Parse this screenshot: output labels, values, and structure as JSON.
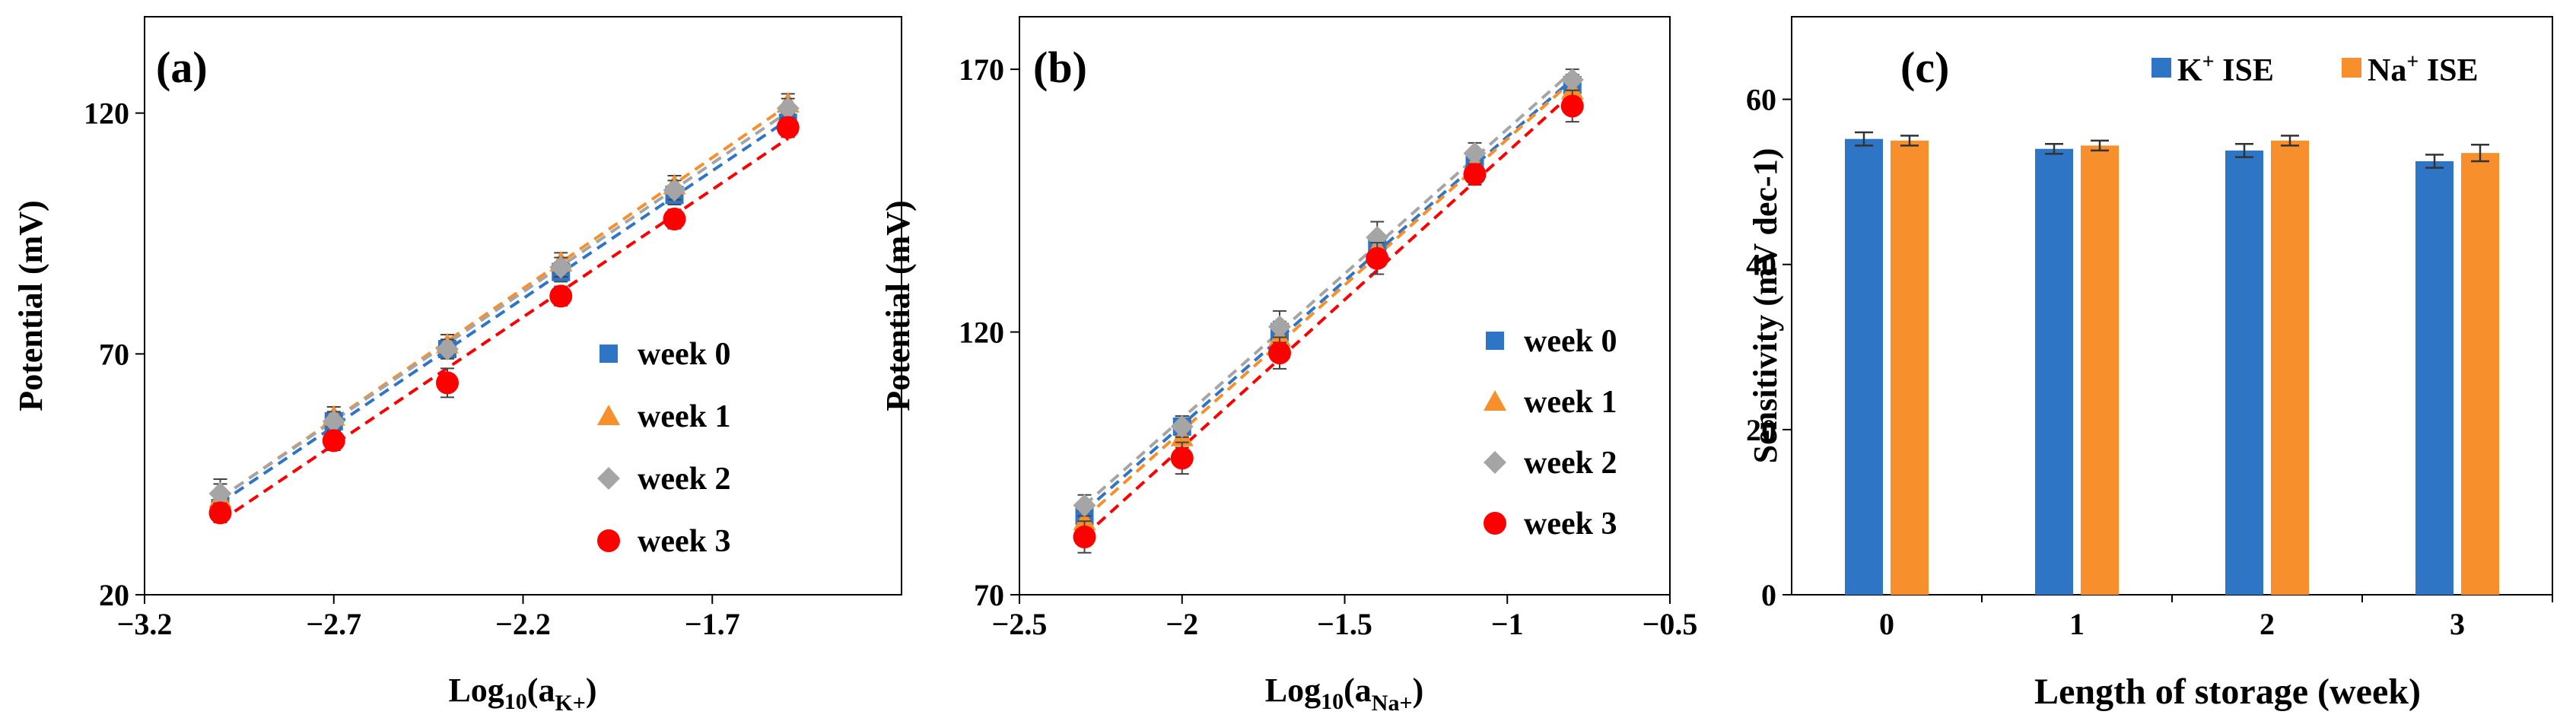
{
  "chart_data": [
    {
      "type": "scatter",
      "panel_label": "(a)",
      "ylabel": "Potential (mV)",
      "xlabel_main": "Log",
      "xlabel_base": "10",
      "xlabel_paren_open": "(a",
      "xlabel_sub": "K+",
      "xlabel_paren_close": ")",
      "xlim": [
        -3.2,
        -1.2
      ],
      "ylim": [
        20,
        140
      ],
      "xticks": [
        -3.2,
        -2.7,
        -2.2,
        -1.7
      ],
      "xtick_labels": [
        "−3.2",
        "−2.7",
        "−2.2",
        "−1.7"
      ],
      "yticks": [
        20,
        70,
        120
      ],
      "ytick_labels": [
        "20",
        "70",
        "120"
      ],
      "x": [
        -3.0,
        -2.7,
        -2.4,
        -2.1,
        -1.8,
        -1.5
      ],
      "series": [
        {
          "name": "week 0",
          "marker": "square",
          "color": "#2E75C6",
          "values": [
            38,
            56,
            71,
            87,
            103,
            118
          ],
          "err": [
            2,
            2,
            2,
            2,
            2,
            2
          ]
        },
        {
          "name": "week 1",
          "marker": "triangle",
          "color": "#F7902C",
          "values": [
            40,
            57,
            72,
            89,
            105,
            122
          ],
          "err": [
            3,
            2,
            2,
            2,
            2,
            2
          ]
        },
        {
          "name": "week 2",
          "marker": "diamond",
          "color": "#A5A5A5",
          "values": [
            41,
            56,
            71,
            88,
            104,
            121
          ],
          "err": [
            3,
            2,
            2,
            2,
            2,
            2
          ]
        },
        {
          "name": "week 3",
          "marker": "circle",
          "color": "#FF0000",
          "values": [
            37,
            52,
            64,
            82,
            98,
            117
          ],
          "err": [
            2,
            2,
            3,
            2,
            2,
            2
          ]
        }
      ],
      "legend_position": "right"
    },
    {
      "type": "scatter",
      "panel_label": "(b)",
      "ylabel": "Potential (mV)",
      "xlabel_main": "Log",
      "xlabel_base": "10",
      "xlabel_paren_open": "(a",
      "xlabel_sub": "Na+",
      "xlabel_paren_close": ")",
      "xlim": [
        -2.5,
        -0.5
      ],
      "ylim": [
        70,
        180
      ],
      "xticks": [
        -2.5,
        -2,
        -1.5,
        -1,
        -0.5
      ],
      "xtick_labels": [
        "−2.5",
        "−2",
        "−1.5",
        "−1",
        "−0.5"
      ],
      "yticks": [
        70,
        120,
        170
      ],
      "ytick_labels": [
        "70",
        "120",
        "170"
      ],
      "x": [
        -2.3,
        -2.0,
        -1.7,
        -1.4,
        -1.1,
        -0.8
      ],
      "series": [
        {
          "name": "week 0",
          "marker": "square",
          "color": "#2E75C6",
          "values": [
            85,
            102,
            120,
            136,
            152,
            167
          ],
          "err": [
            2,
            2,
            2,
            2,
            2,
            2
          ]
        },
        {
          "name": "week 1",
          "marker": "triangle",
          "color": "#F7902C",
          "values": [
            84,
            100,
            119,
            136,
            152,
            166
          ],
          "err": [
            2,
            2,
            2,
            2,
            2,
            2
          ]
        },
        {
          "name": "week 2",
          "marker": "diamond",
          "color": "#A5A5A5",
          "values": [
            87,
            102,
            121,
            138,
            154,
            168
          ],
          "err": [
            2,
            2,
            3,
            3,
            2,
            2
          ]
        },
        {
          "name": "week 3",
          "marker": "circle",
          "color": "#FF0000",
          "values": [
            81,
            96,
            116,
            134,
            150,
            163
          ],
          "err": [
            3,
            3,
            3,
            3,
            2,
            3
          ]
        }
      ],
      "legend_position": "bottom-right"
    },
    {
      "type": "bar",
      "panel_label": "(c)",
      "ylabel": "Sensitivity  (mV dec-1)",
      "xlabel": "Length of storage (week)",
      "ylim": [
        0,
        70
      ],
      "yticks": [
        0,
        20,
        40,
        60
      ],
      "ytick_labels": [
        "0",
        "20",
        "40",
        "60"
      ],
      "categories": [
        "0",
        "1",
        "2",
        "3"
      ],
      "series": [
        {
          "name": "K+ ISE",
          "name_ion": "K",
          "name_charge": "+",
          "name_rest": " ISE",
          "color": "#2E75C6",
          "values": [
            55.2,
            54.0,
            53.8,
            52.5
          ],
          "err": [
            0.8,
            0.6,
            0.8,
            0.8
          ]
        },
        {
          "name": "Na+ ISE",
          "name_ion": "Na",
          "name_charge": "+",
          "name_rest": " ISE",
          "color": "#F7902C",
          "values": [
            55.0,
            54.4,
            55.0,
            53.5
          ],
          "err": [
            0.6,
            0.6,
            0.6,
            1.0
          ]
        }
      ],
      "legend_position": "top-right"
    }
  ]
}
